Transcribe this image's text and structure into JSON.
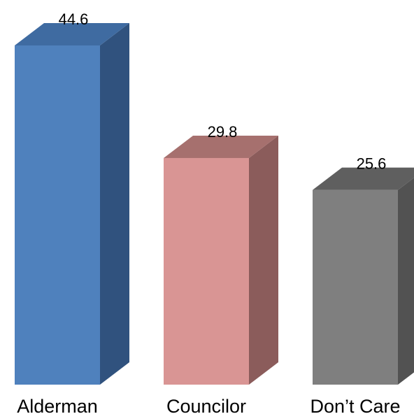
{
  "chart_data": {
    "type": "bar",
    "categories": [
      "Alderman",
      "Councilor",
      "Don’t Care"
    ],
    "values": [
      44.6,
      29.8,
      25.6
    ],
    "data_labels": [
      "44.6",
      "29.8",
      "25.6"
    ],
    "title": "",
    "xlabel": "",
    "ylabel": "",
    "ylim": [
      0,
      44.6
    ],
    "grid": false,
    "legend": "none",
    "style": "3d-column",
    "colors": [
      {
        "front": "#4F81BD",
        "top": "#3F6BA1",
        "side": "#30527E"
      },
      {
        "front": "#D99594",
        "top": "#A6706E",
        "side": "#8B5C5B"
      },
      {
        "front": "#7F7F7F",
        "top": "#5F5F5F",
        "side": "#525252"
      }
    ]
  }
}
